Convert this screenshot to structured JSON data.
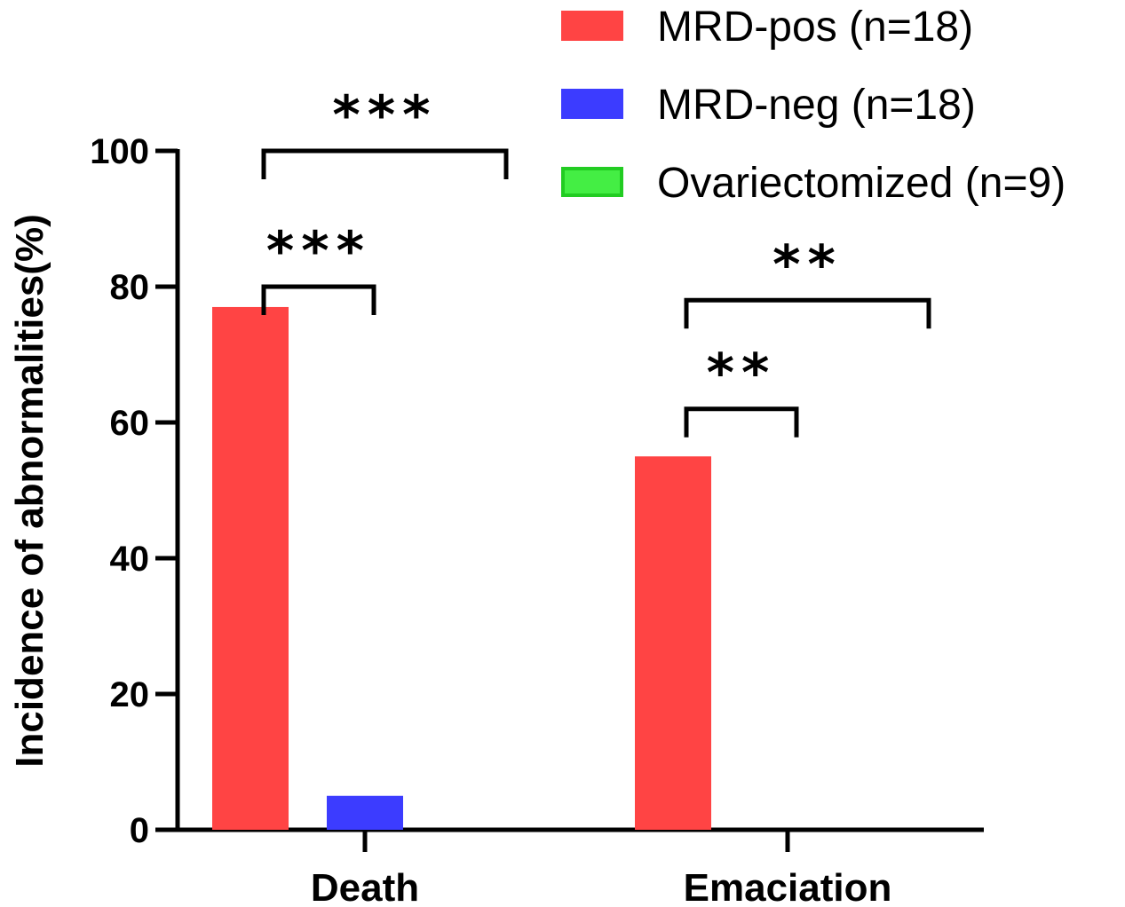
{
  "chart_data": {
    "type": "bar",
    "title": "",
    "xlabel": "",
    "ylabel": "Incidence of abnormalities(%)",
    "ylim": [
      0,
      100
    ],
    "yticks": [
      0,
      20,
      40,
      60,
      80,
      100
    ],
    "categories": [
      "Death",
      "Emaciation"
    ],
    "series": [
      {
        "name": "MRD-pos (n=18)",
        "color": "#ff4444",
        "values": [
          77,
          55
        ]
      },
      {
        "name": "MRD-neg (n=18)",
        "color": "#3c3cff",
        "values": [
          5,
          0
        ]
      },
      {
        "name": "Ovariectomized (n=9)",
        "color": "#44ee44",
        "values": [
          0,
          0
        ]
      }
    ],
    "legend_position": "top-right",
    "significance": [
      {
        "category": "Death",
        "from": "MRD-pos (n=18)",
        "to": "MRD-neg (n=18)",
        "label": "***",
        "level": 80
      },
      {
        "category": "Death",
        "from": "MRD-pos (n=18)",
        "to": "Ovariectomized (n=9)",
        "label": "***",
        "level": 100
      },
      {
        "category": "Emaciation",
        "from": "MRD-pos (n=18)",
        "to": "MRD-neg (n=18)",
        "label": "**",
        "level": 62
      },
      {
        "category": "Emaciation",
        "from": "MRD-pos (n=18)",
        "to": "Ovariectomized (n=9)",
        "label": "**",
        "level": 78
      }
    ]
  }
}
